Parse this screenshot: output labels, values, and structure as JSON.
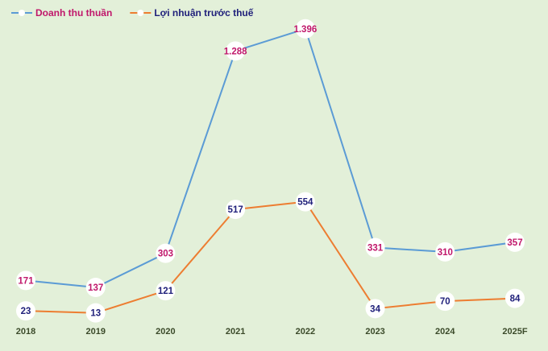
{
  "chart_data": {
    "type": "line",
    "categories": [
      "2018",
      "2019",
      "2020",
      "2021",
      "2022",
      "2023",
      "2024",
      "2025F"
    ],
    "series": [
      {
        "name": "Doanh thu thuần",
        "values": [
          171,
          137,
          303,
          1288,
          1396,
          331,
          310,
          357
        ],
        "labels": [
          "171",
          "137",
          "303",
          "1.288",
          "1.396",
          "331",
          "310",
          "357"
        ],
        "color": "#5b9bd5",
        "label_color": "#c0176b"
      },
      {
        "name": "Lợi nhuận trước thuế",
        "values": [
          23,
          13,
          121,
          517,
          554,
          34,
          70,
          84
        ],
        "labels": [
          "23",
          "13",
          "121",
          "517",
          "554",
          "34",
          "70",
          "84"
        ],
        "color": "#ed7d31",
        "label_color": "#1f1f7a"
      }
    ],
    "legend_position": "top-left",
    "grid": false,
    "ylim": [
      0,
      1450
    ]
  }
}
